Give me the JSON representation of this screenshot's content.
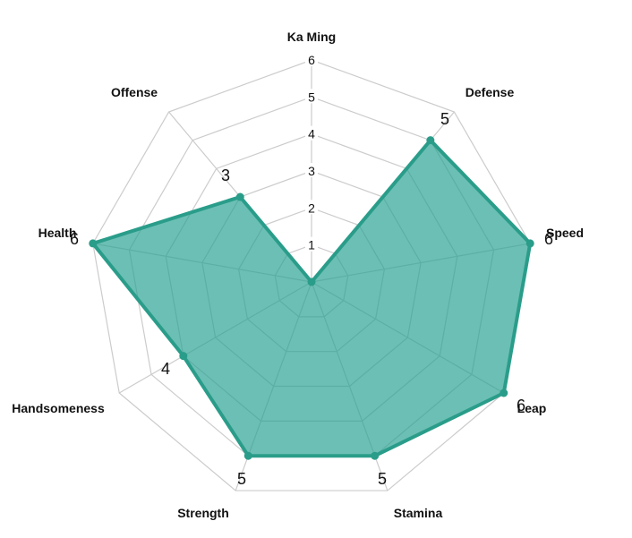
{
  "chart_data": {
    "type": "radar",
    "title": "",
    "categories": [
      "Ka Ming",
      "Defense",
      "Speed",
      "Leap",
      "Stamina",
      "Strength",
      "Handsomeness",
      "Health",
      "Offense"
    ],
    "series": [
      {
        "values": [
          0,
          5,
          6,
          6,
          5,
          5,
          4,
          6,
          3
        ]
      }
    ],
    "rlim": [
      0,
      6
    ],
    "r_ticks": [
      "1",
      "2",
      "3",
      "4",
      "5",
      "6"
    ],
    "data_labels": [
      "",
      "5",
      "6",
      "6",
      "5",
      "5",
      "4",
      "6",
      "3"
    ],
    "grid": true,
    "colors": {
      "fill": "#26a090",
      "stroke": "#2a9d8a",
      "grid": "#cccccc"
    }
  }
}
